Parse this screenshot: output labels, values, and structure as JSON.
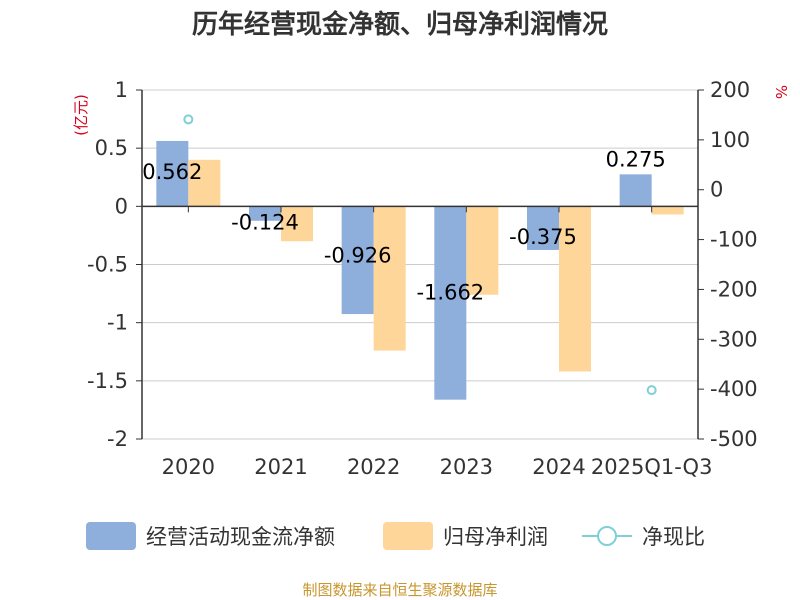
{
  "chart_data": {
    "type": "bar",
    "title": "历年经营现金净额、归母净利润情况",
    "categories": [
      "2020",
      "2021",
      "2022",
      "2023",
      "2024",
      "2025Q1-Q3"
    ],
    "series": [
      {
        "name": "经营活动现金流净额",
        "kind": "bar",
        "axis": "left",
        "color": "#8eaedb",
        "values": [
          0.562,
          -0.124,
          -0.926,
          -1.662,
          -0.375,
          0.275
        ],
        "labels": [
          "0.562",
          "-0.124",
          "-0.926",
          "-1.662",
          "-0.375",
          "0.275"
        ]
      },
      {
        "name": "归母净利润",
        "kind": "bar",
        "axis": "left",
        "color": "#ffd699",
        "values": [
          0.4,
          -0.3,
          -1.24,
          -0.76,
          -1.42,
          -0.07
        ]
      },
      {
        "name": "净现比",
        "kind": "scatter",
        "axis": "right",
        "color": "#7fcfd8",
        "values": [
          141,
          null,
          null,
          null,
          null,
          -402
        ]
      }
    ],
    "y_left": {
      "unit": "(亿元)",
      "ylim": [
        -2,
        1
      ],
      "ticks": [
        1,
        0.5,
        0,
        -0.5,
        -1,
        -1.5,
        -2
      ],
      "tick_labels": [
        "1",
        "0.5",
        "0",
        "-0.5",
        "-1",
        "-1.5",
        "-2"
      ]
    },
    "y_right": {
      "unit": "%",
      "ylim": [
        -500,
        200
      ],
      "ticks": [
        200,
        100,
        0,
        -100,
        -200,
        -300,
        -400,
        -500
      ],
      "tick_labels": [
        "200",
        "100",
        "0",
        "-100",
        "-200",
        "-300",
        "-400",
        "-500"
      ]
    },
    "legend_position": "bottom",
    "grid": true
  },
  "source_text": "制图数据来自恒生聚源数据库",
  "colors": {
    "unit_red": "#d9001b",
    "source_gold": "#c8962e",
    "axis": "#333333",
    "grid": "#cccccc"
  }
}
